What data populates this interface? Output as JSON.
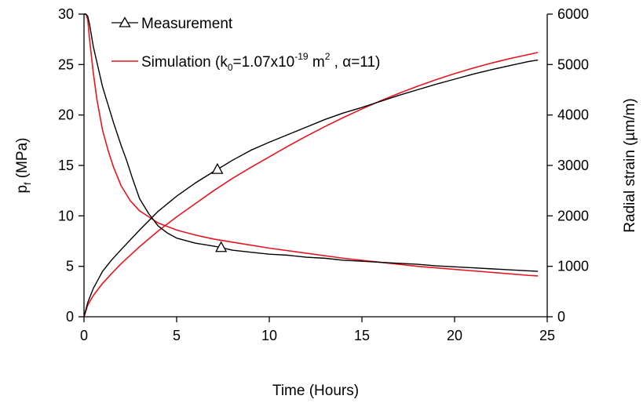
{
  "chart_data": {
    "type": "line",
    "title": "",
    "xlabel": "Time (Hours)",
    "ylabel_left": {
      "base": "p",
      "sub": "f",
      "rest": " (MPa)"
    },
    "ylabel_right": "Radial strain (µm/m)",
    "xlim": [
      0,
      25
    ],
    "ylim_left": [
      0,
      30
    ],
    "ylim_right": [
      0,
      6000
    ],
    "x_ticks": [
      "0",
      "5",
      "10",
      "15",
      "20",
      "25"
    ],
    "y_left_ticks": [
      "0",
      "5",
      "10",
      "15",
      "20",
      "25",
      "30"
    ],
    "y_right_ticks": [
      "0",
      "1000",
      "2000",
      "3000",
      "4000",
      "5000",
      "6000"
    ],
    "grid": false,
    "legend": {
      "position": "top-left",
      "measurement": "Measurement",
      "simulation": {
        "prefix": "Simulation (k",
        "k_sub": "0",
        "k_mid": "=1.07x10",
        "k_exp": "-19",
        "k_unit": " m",
        "unit_exp": "2",
        "rest": " , α=11)"
      }
    },
    "series": [
      {
        "name": "Measurement",
        "color": "#000000",
        "marker": "triangle",
        "curves": [
          {
            "quantity": "pf",
            "axis": "left",
            "x": [
              0,
              0.1,
              0.2,
              0.3,
              0.5,
              0.7,
              1.0,
              1.3,
              1.6,
              2.0,
              2.3,
              2.6,
              3.0,
              3.5,
              4.0,
              4.5,
              5.0,
              6.0,
              7.0,
              7.3,
              8.0,
              9.0,
              10.0,
              11.0,
              12.0,
              13.0,
              14.0,
              15.0,
              16.0,
              17.0,
              18.0,
              19.0,
              20.0,
              21.0,
              22.0,
              23.0,
              24.0,
              24.5
            ],
            "y": [
              30,
              30,
              29.8,
              29,
              26.8,
              25.2,
              22.8,
              21.0,
              19.2,
              17.0,
              15.5,
              13.8,
              11.7,
              10.2,
              9.0,
              8.3,
              7.8,
              7.3,
              7.0,
              6.9,
              6.6,
              6.4,
              6.2,
              6.1,
              5.9,
              5.8,
              5.6,
              5.5,
              5.4,
              5.3,
              5.2,
              5.05,
              4.95,
              4.85,
              4.75,
              4.65,
              4.55,
              4.5
            ],
            "marker_at": [
              7.4
            ]
          },
          {
            "quantity": "radial_strain",
            "axis": "right",
            "x": [
              0,
              0.2,
              0.5,
              1.0,
              1.5,
              2.0,
              3.0,
              4.0,
              5.0,
              6.0,
              7.0,
              7.2,
              8.0,
              9.0,
              10.0,
              11.0,
              12.0,
              13.0,
              14.0,
              15.0,
              16.0,
              17.0,
              18.0,
              19.0,
              20.0,
              21.0,
              22.0,
              23.0,
              24.0,
              24.5
            ],
            "y": [
              0,
              280,
              560,
              900,
              1130,
              1330,
              1720,
              2090,
              2390,
              2650,
              2880,
              2920,
              3100,
              3300,
              3460,
              3610,
              3760,
              3910,
              4040,
              4150,
              4270,
              4390,
              4500,
              4610,
              4710,
              4810,
              4900,
              4980,
              5060,
              5090
            ],
            "marker_at": [
              7.2
            ]
          }
        ]
      },
      {
        "name": "Simulation",
        "color": "#e8141e",
        "curves": [
          {
            "quantity": "pf",
            "axis": "left",
            "x": [
              0,
              0.1,
              0.2,
              0.3,
              0.5,
              0.7,
              1.0,
              1.3,
              1.6,
              2.0,
              2.5,
              3.0,
              3.5,
              4.0,
              5.0,
              6.0,
              7.0,
              8.0,
              10.0,
              12.0,
              14.0,
              16.0,
              18.0,
              20.0,
              22.0,
              24.0,
              24.5
            ],
            "y": [
              30,
              30,
              29.5,
              27.5,
              24.2,
              21.5,
              18.5,
              16.5,
              14.8,
              13.0,
              11.5,
              10.5,
              9.9,
              9.3,
              8.6,
              8.1,
              7.7,
              7.4,
              6.8,
              6.3,
              5.8,
              5.4,
              5.0,
              4.7,
              4.4,
              4.1,
              4.05
            ]
          },
          {
            "quantity": "radial_strain",
            "axis": "right",
            "x": [
              0,
              0.2,
              0.5,
              1.0,
              1.5,
              2.0,
              3.0,
              4.0,
              5.0,
              6.0,
              7.0,
              8.0,
              9.0,
              10.0,
              11.0,
              12.0,
              13.0,
              14.0,
              15.0,
              16.0,
              17.0,
              18.0,
              19.0,
              20.0,
              21.0,
              22.0,
              23.0,
              24.0,
              24.5
            ],
            "y": [
              0,
              230,
              420,
              660,
              860,
              1050,
              1390,
              1700,
              1980,
              2240,
              2500,
              2740,
              2960,
              3170,
              3380,
              3580,
              3770,
              3950,
              4120,
              4280,
              4430,
              4570,
              4700,
              4820,
              4930,
              5030,
              5120,
              5200,
              5240
            ]
          }
        ]
      }
    ]
  }
}
